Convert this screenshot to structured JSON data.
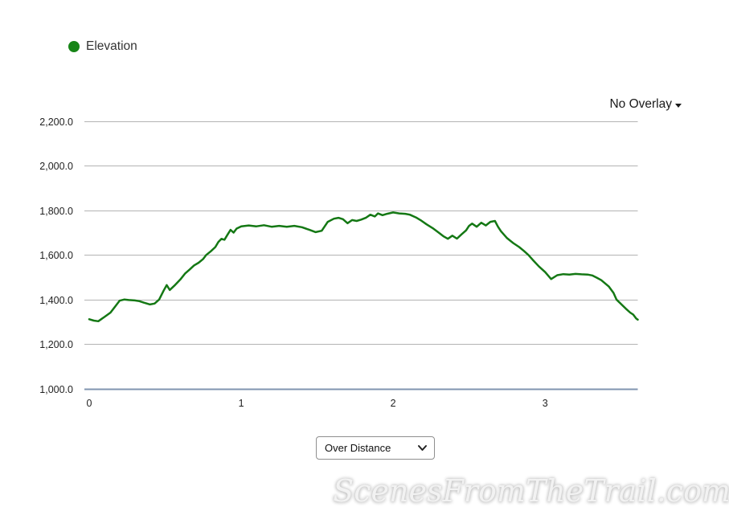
{
  "legend": {
    "label": "Elevation",
    "color": "#178517"
  },
  "overlay_dropdown": {
    "label": "No Overlay"
  },
  "view_select": {
    "value": "Over Distance"
  },
  "watermark": "ScenesFromTheTrail.com",
  "colors": {
    "grid_line": "#b3b3b3",
    "axis_line": "#8094b0",
    "tick_text": "#1f1f1f",
    "series_line": "#147814"
  },
  "chart_data": {
    "type": "line",
    "title": "",
    "xlabel": "",
    "ylabel": "",
    "grid": "horizontal",
    "legend_position": "top-left",
    "xlim": [
      0,
      3.61
    ],
    "ylim": [
      1000,
      2200
    ],
    "x_ticks": [
      {
        "value": 0,
        "label": "0"
      },
      {
        "value": 1,
        "label": "1"
      },
      {
        "value": 2,
        "label": "2"
      },
      {
        "value": 3,
        "label": "3"
      }
    ],
    "y_ticks": [
      {
        "value": 2200,
        "label": "2,200.0"
      },
      {
        "value": 2000,
        "label": "2,000.0"
      },
      {
        "value": 1800,
        "label": "1,800.0"
      },
      {
        "value": 1600,
        "label": "1,600.0"
      },
      {
        "value": 1400,
        "label": "1,400.0"
      },
      {
        "value": 1200,
        "label": "1,200.0"
      },
      {
        "value": 1000,
        "label": "1,000.0"
      }
    ],
    "series": [
      {
        "name": "Elevation",
        "color": "#147814",
        "points": [
          [
            0.0,
            1312
          ],
          [
            0.03,
            1306
          ],
          [
            0.06,
            1303
          ],
          [
            0.1,
            1322
          ],
          [
            0.14,
            1342
          ],
          [
            0.17,
            1368
          ],
          [
            0.2,
            1395
          ],
          [
            0.23,
            1400
          ],
          [
            0.26,
            1398
          ],
          [
            0.3,
            1396
          ],
          [
            0.33,
            1393
          ],
          [
            0.36,
            1386
          ],
          [
            0.4,
            1378
          ],
          [
            0.43,
            1382
          ],
          [
            0.46,
            1400
          ],
          [
            0.49,
            1440
          ],
          [
            0.51,
            1465
          ],
          [
            0.53,
            1443
          ],
          [
            0.56,
            1462
          ],
          [
            0.6,
            1490
          ],
          [
            0.63,
            1516
          ],
          [
            0.66,
            1534
          ],
          [
            0.69,
            1553
          ],
          [
            0.72,
            1565
          ],
          [
            0.75,
            1582
          ],
          [
            0.77,
            1600
          ],
          [
            0.8,
            1616
          ],
          [
            0.83,
            1635
          ],
          [
            0.85,
            1658
          ],
          [
            0.87,
            1672
          ],
          [
            0.89,
            1668
          ],
          [
            0.91,
            1690
          ],
          [
            0.93,
            1712
          ],
          [
            0.95,
            1700
          ],
          [
            0.97,
            1718
          ],
          [
            1.0,
            1728
          ],
          [
            1.05,
            1732
          ],
          [
            1.1,
            1728
          ],
          [
            1.15,
            1733
          ],
          [
            1.2,
            1726
          ],
          [
            1.25,
            1730
          ],
          [
            1.3,
            1726
          ],
          [
            1.35,
            1730
          ],
          [
            1.4,
            1724
          ],
          [
            1.45,
            1712
          ],
          [
            1.49,
            1702
          ],
          [
            1.53,
            1708
          ],
          [
            1.57,
            1748
          ],
          [
            1.61,
            1762
          ],
          [
            1.64,
            1766
          ],
          [
            1.67,
            1760
          ],
          [
            1.7,
            1742
          ],
          [
            1.73,
            1756
          ],
          [
            1.76,
            1752
          ],
          [
            1.79,
            1758
          ],
          [
            1.82,
            1766
          ],
          [
            1.85,
            1780
          ],
          [
            1.88,
            1772
          ],
          [
            1.9,
            1786
          ],
          [
            1.93,
            1778
          ],
          [
            1.96,
            1784
          ],
          [
            2.0,
            1790
          ],
          [
            2.04,
            1786
          ],
          [
            2.08,
            1784
          ],
          [
            2.11,
            1780
          ],
          [
            2.15,
            1768
          ],
          [
            2.18,
            1756
          ],
          [
            2.22,
            1737
          ],
          [
            2.26,
            1720
          ],
          [
            2.3,
            1700
          ],
          [
            2.33,
            1684
          ],
          [
            2.36,
            1672
          ],
          [
            2.39,
            1686
          ],
          [
            2.42,
            1673
          ],
          [
            2.45,
            1692
          ],
          [
            2.48,
            1710
          ],
          [
            2.5,
            1730
          ],
          [
            2.52,
            1740
          ],
          [
            2.55,
            1726
          ],
          [
            2.58,
            1744
          ],
          [
            2.61,
            1732
          ],
          [
            2.64,
            1748
          ],
          [
            2.67,
            1752
          ],
          [
            2.69,
            1726
          ],
          [
            2.71,
            1706
          ],
          [
            2.75,
            1675
          ],
          [
            2.79,
            1653
          ],
          [
            2.83,
            1635
          ],
          [
            2.86,
            1618
          ],
          [
            2.89,
            1600
          ],
          [
            2.92,
            1577
          ],
          [
            2.96,
            1548
          ],
          [
            3.0,
            1523
          ],
          [
            3.04,
            1492
          ],
          [
            3.08,
            1509
          ],
          [
            3.12,
            1514
          ],
          [
            3.16,
            1512
          ],
          [
            3.2,
            1515
          ],
          [
            3.24,
            1513
          ],
          [
            3.28,
            1512
          ],
          [
            3.31,
            1508
          ],
          [
            3.34,
            1498
          ],
          [
            3.37,
            1487
          ],
          [
            3.42,
            1458
          ],
          [
            3.45,
            1430
          ],
          [
            3.47,
            1400
          ],
          [
            3.5,
            1380
          ],
          [
            3.53,
            1360
          ],
          [
            3.56,
            1342
          ],
          [
            3.58,
            1333
          ],
          [
            3.6,
            1315
          ],
          [
            3.61,
            1310
          ]
        ]
      }
    ]
  }
}
